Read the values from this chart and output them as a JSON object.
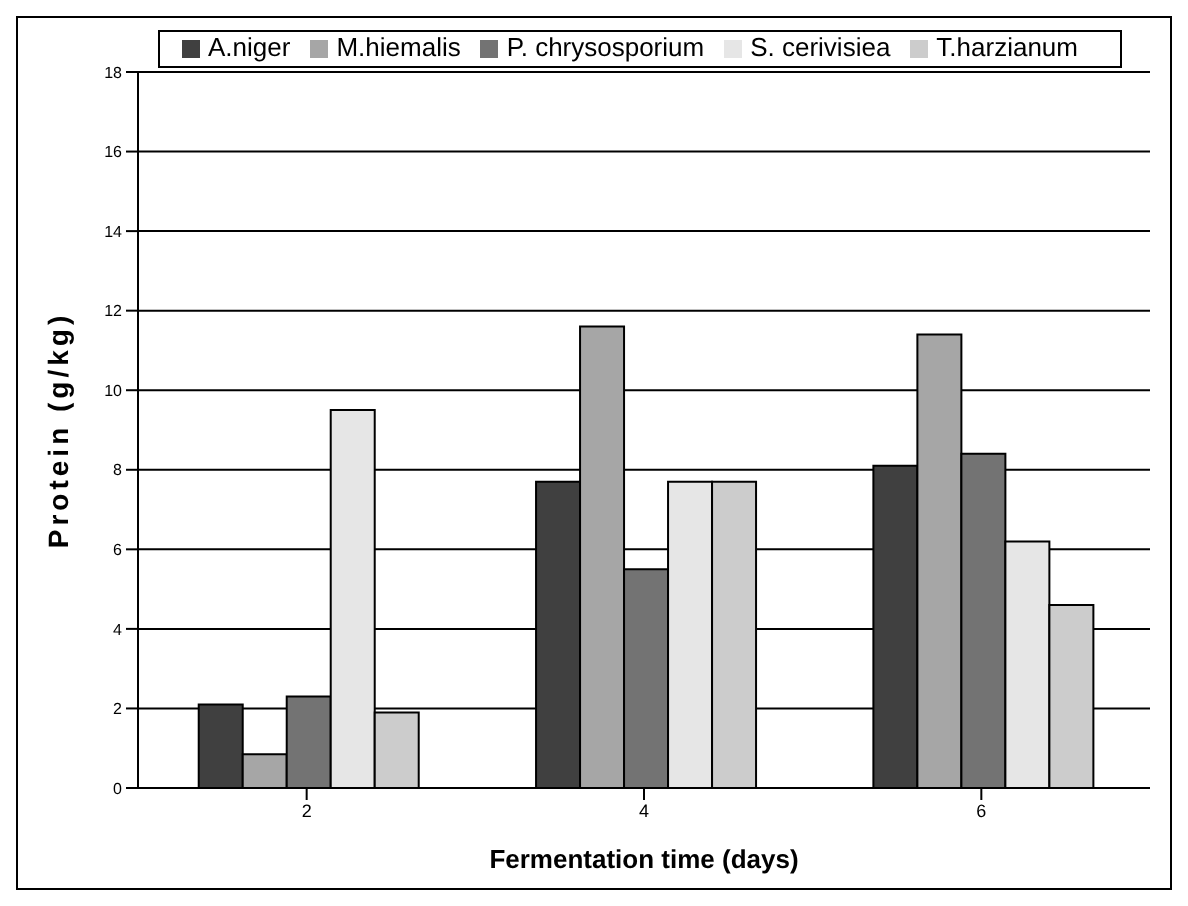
{
  "chart_data": {
    "type": "bar",
    "xlabel": "Fermentation time (days)",
    "ylabel": "Protein (g/kg)",
    "categories": [
      "2",
      "4",
      "6"
    ],
    "series": [
      {
        "name": "A.niger",
        "color": "#404040",
        "values": [
          2.1,
          7.7,
          8.1
        ]
      },
      {
        "name": "M.hiemalis",
        "color": "#a6a6a6",
        "values": [
          0.85,
          11.6,
          11.4
        ]
      },
      {
        "name": "P. chrysosporium",
        "color": "#737373",
        "values": [
          2.3,
          5.5,
          8.4
        ]
      },
      {
        "name": "S. cerivisiea",
        "color": "#e6e6e6",
        "values": [
          9.5,
          7.7,
          6.2
        ]
      },
      {
        "name": "T.harzianum",
        "color": "#cccccc",
        "values": [
          1.9,
          7.7,
          4.6
        ]
      }
    ],
    "ylim": [
      0,
      18
    ],
    "yticks": [
      0,
      2,
      4,
      6,
      8,
      10,
      12,
      14,
      16,
      18
    ],
    "grid": "y",
    "legend": "top"
  }
}
